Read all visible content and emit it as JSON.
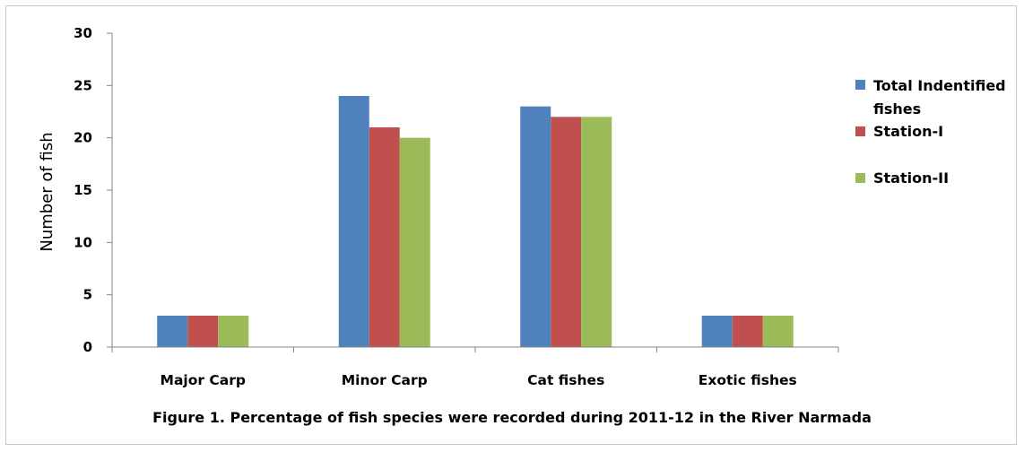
{
  "chart_data": {
    "type": "bar",
    "title": "",
    "caption": "Figure 1. Percentage of fish species were recorded during 2011-12 in the River Narmada",
    "xlabel": "",
    "ylabel": "Number of fish",
    "ylim": [
      0,
      30
    ],
    "yticks": [
      0,
      5,
      10,
      15,
      20,
      25,
      30
    ],
    "grid": false,
    "legend_position": "right",
    "categories": [
      "Major Carp",
      "Minor Carp",
      "Cat fishes",
      "Exotic fishes"
    ],
    "series": [
      {
        "name": "Total Indentified fishes",
        "color": "#4f81bd",
        "values": [
          3,
          24,
          23,
          3
        ]
      },
      {
        "name": "Station-I",
        "color": "#c0504d",
        "values": [
          3,
          21,
          22,
          3
        ]
      },
      {
        "name": "Station-II",
        "color": "#9bbb59",
        "values": [
          3,
          20,
          22,
          3
        ]
      }
    ]
  }
}
